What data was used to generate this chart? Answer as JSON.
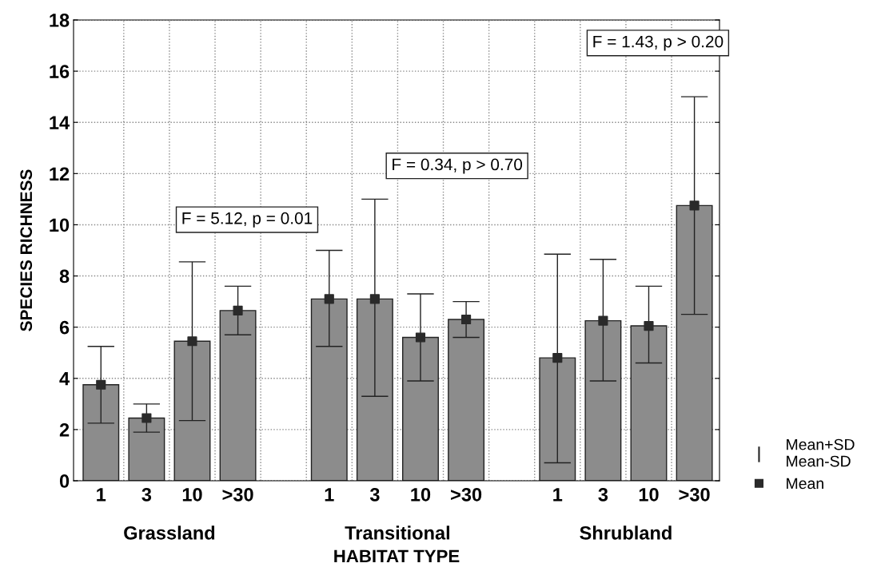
{
  "chart_data": {
    "type": "bar",
    "ylabel": "SPECIES RICHNESS",
    "xlabel": "HABITAT TYPE",
    "categories": [
      "1",
      "3",
      "10",
      ">30",
      null,
      "1",
      "3",
      "10",
      ">30",
      null,
      "1",
      "3",
      "10",
      ">30"
    ],
    "series": [
      {
        "color": "#8c8c8c",
        "values": [
          3.75,
          2.45,
          5.45,
          6.65,
          null,
          7.1,
          7.1,
          5.6,
          6.3,
          null,
          4.8,
          6.25,
          6.05,
          10.75
        ]
      },
      {
        "type": "scatter",
        "name": "Mean",
        "color": "#2a2a2a",
        "marker": "square",
        "values": [
          3.75,
          2.45,
          5.45,
          6.65,
          null,
          7.1,
          7.1,
          5.6,
          6.3,
          null,
          4.8,
          6.25,
          6.05,
          10.75
        ],
        "errors": [
          [
            2.25,
            5.25
          ],
          [
            1.9,
            3.0
          ],
          [
            2.35,
            8.55
          ],
          [
            5.7,
            7.6
          ],
          null,
          [
            5.25,
            9.0
          ],
          [
            3.3,
            11.0
          ],
          [
            3.9,
            7.3
          ],
          [
            5.6,
            7.0
          ],
          null,
          [
            0.7,
            8.85
          ],
          [
            3.9,
            8.65
          ],
          [
            4.6,
            7.6
          ],
          [
            6.5,
            15.0
          ]
        ]
      }
    ],
    "annotations": [
      "F = 5.12, p = 0.01",
      "F = 0.34, p > 0.70",
      "F = 1.43, p > 0.20",
      "Grassland",
      "Transitional",
      "Shrubland",
      "Mean+SD\nMean-SD"
    ],
    "ylim": [
      0,
      18
    ],
    "yticks": [
      0,
      2,
      4,
      6,
      8,
      10,
      12,
      14,
      16,
      18
    ],
    "grid": true,
    "legend": "bottom right"
  }
}
